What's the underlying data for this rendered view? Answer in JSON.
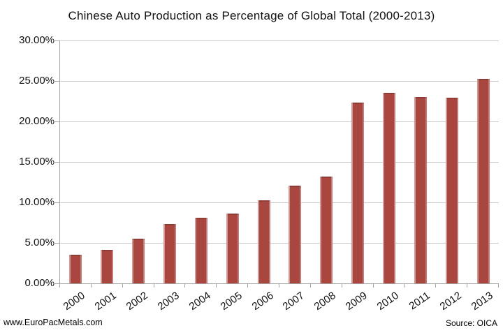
{
  "footer": {
    "left": "www.EuroPacMetals.com",
    "right": "Source: OICA"
  },
  "chart_data": {
    "type": "bar",
    "title": "Chinese Auto Production as Percentage of Global Total (2000-2013)",
    "categories": [
      "2000",
      "2001",
      "2002",
      "2003",
      "2004",
      "2005",
      "2006",
      "2007",
      "2008",
      "2009",
      "2010",
      "2011",
      "2012",
      "2013"
    ],
    "values": [
      3.5,
      4.1,
      5.5,
      7.3,
      8.1,
      8.6,
      10.3,
      12.1,
      13.2,
      22.3,
      23.5,
      23.0,
      22.9,
      25.3
    ],
    "unit": "%",
    "xlabel": "",
    "ylabel": "",
    "ylim": [
      0,
      30
    ],
    "y_ticks": [
      "30.00%",
      "25.00%",
      "20.00%",
      "15.00%",
      "10.00%",
      "5.00%",
      "0.00%"
    ],
    "grid": true,
    "legend": "none",
    "bar_color": "#a8463f",
    "gridline_color": "#c9c9c9",
    "axis_color": "#a6a6a6",
    "text_color": "#111111"
  }
}
